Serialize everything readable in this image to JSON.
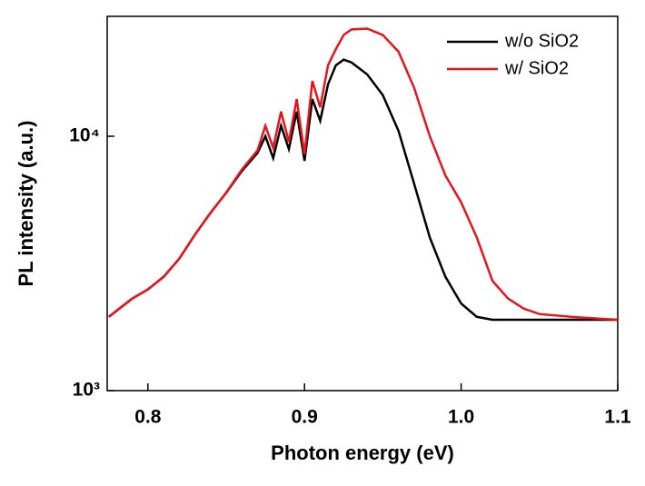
{
  "chart_data": {
    "type": "line",
    "x_label": "Photon energy (eV)",
    "y_label": "PL intensity (a.u.)",
    "x": [
      0.775,
      0.79,
      0.8,
      0.81,
      0.82,
      0.83,
      0.84,
      0.85,
      0.86,
      0.87,
      0.875,
      0.88,
      0.885,
      0.89,
      0.895,
      0.9,
      0.905,
      0.91,
      0.915,
      0.92,
      0.925,
      0.93,
      0.94,
      0.95,
      0.96,
      0.97,
      0.98,
      0.99,
      1.0,
      1.01,
      1.02,
      1.03,
      1.04,
      1.05,
      1.07,
      1.1
    ],
    "series": [
      {
        "name": "w/o SiO2",
        "color": "#000000",
        "values": [
          1950,
          2300,
          2500,
          2800,
          3300,
          4100,
          5000,
          6000,
          7300,
          8600,
          10000,
          8200,
          11000,
          8900,
          12500,
          8000,
          14000,
          11500,
          16000,
          19000,
          20000,
          19500,
          17500,
          14500,
          10500,
          6500,
          4000,
          2800,
          2200,
          1950,
          1900,
          1900,
          1900,
          1900,
          1900,
          1900
        ]
      },
      {
        "name": "w/ SiO2",
        "color": "#e8141b",
        "values": [
          1950,
          2300,
          2500,
          2800,
          3300,
          4100,
          5000,
          6000,
          7400,
          8800,
          11000,
          9000,
          12500,
          9500,
          14000,
          8500,
          16500,
          13000,
          19000,
          22000,
          25000,
          26300,
          26500,
          25000,
          21500,
          15500,
          10000,
          7000,
          5500,
          4000,
          2700,
          2300,
          2100,
          2000,
          1950,
          1900
        ]
      }
    ],
    "xlim": [
      0.774,
      1.1
    ],
    "xticks": [
      0.8,
      0.9,
      {
        "value": 1.0,
        "label": "1.0"
      },
      1.1
    ],
    "ylim": [
      1000,
      29600
    ],
    "yticks": [
      {
        "value": 1000,
        "label": "10³"
      },
      {
        "value": 10000,
        "label": "10⁴"
      }
    ],
    "log_y": true,
    "legend": "upper right"
  }
}
